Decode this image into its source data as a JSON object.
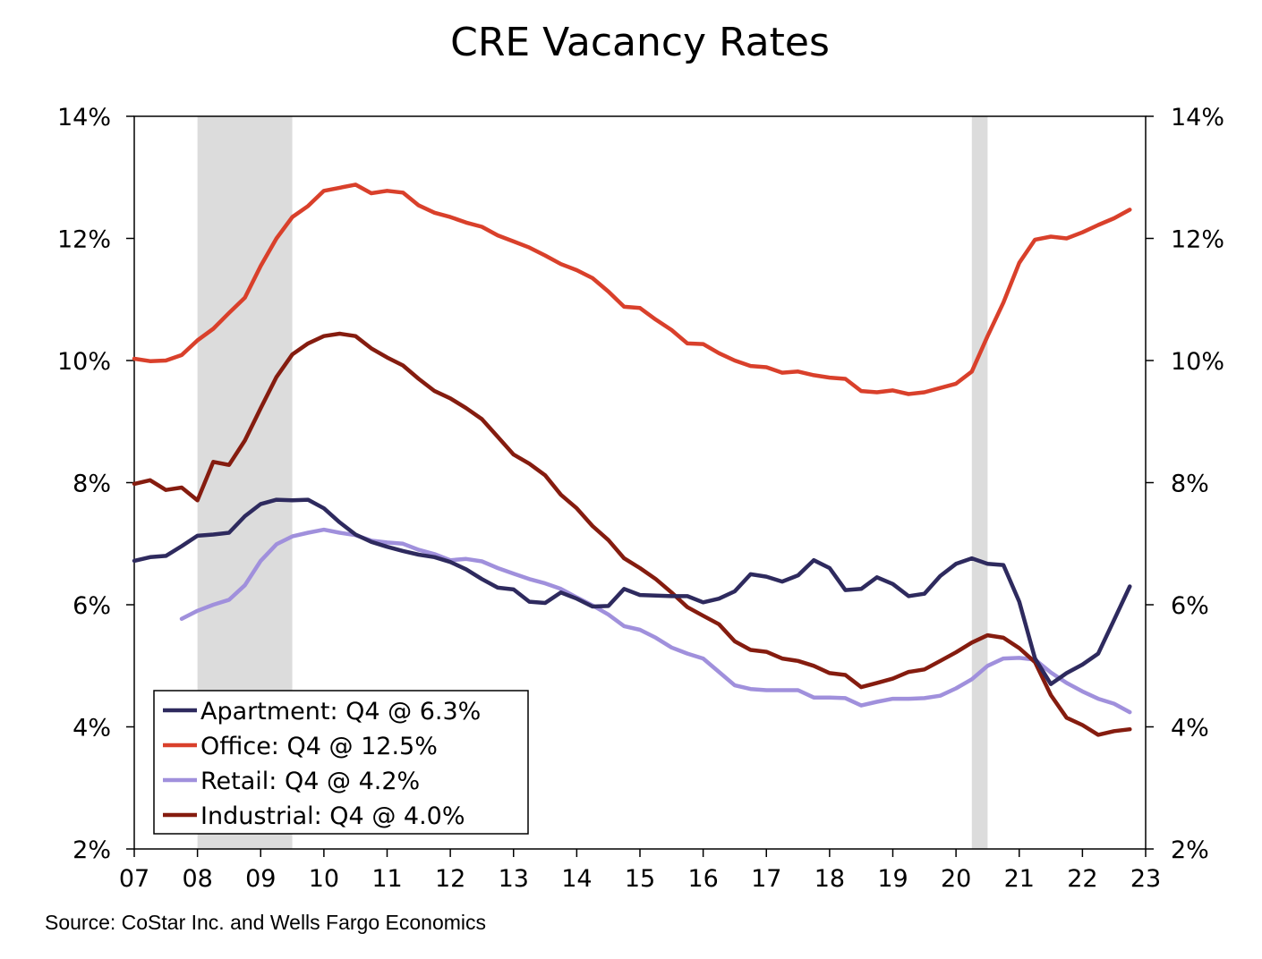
{
  "chart_data": {
    "type": "line",
    "title": "CRE Vacancy Rates",
    "source": "Source: CoStar Inc. and Wells Fargo Economics",
    "x_ticks": [
      "07",
      "08",
      "09",
      "10",
      "11",
      "12",
      "13",
      "14",
      "15",
      "16",
      "17",
      "18",
      "19",
      "20",
      "21",
      "22",
      "23"
    ],
    "y_ticks_left": [
      "2%",
      "4%",
      "6%",
      "8%",
      "10%",
      "12%",
      "14%"
    ],
    "y_ticks_right": [
      "2%",
      "4%",
      "6%",
      "8%",
      "10%",
      "12%",
      "14%"
    ],
    "xlim": [
      2007,
      2023
    ],
    "ylim": [
      2,
      14
    ],
    "grid": false,
    "legend_position": "bottom-left",
    "recessions": [
      [
        2008.0,
        2009.5
      ],
      [
        2020.25,
        2020.5
      ]
    ],
    "x": [
      2007.0,
      2007.25,
      2007.5,
      2007.75,
      2008.0,
      2008.25,
      2008.5,
      2008.75,
      2009.0,
      2009.25,
      2009.5,
      2009.75,
      2010.0,
      2010.25,
      2010.5,
      2010.75,
      2011.0,
      2011.25,
      2011.5,
      2011.75,
      2012.0,
      2012.25,
      2012.5,
      2012.75,
      2013.0,
      2013.25,
      2013.5,
      2013.75,
      2014.0,
      2014.25,
      2014.5,
      2014.75,
      2015.0,
      2015.25,
      2015.5,
      2015.75,
      2016.0,
      2016.25,
      2016.5,
      2016.75,
      2017.0,
      2017.25,
      2017.5,
      2017.75,
      2018.0,
      2018.25,
      2018.5,
      2018.75,
      2019.0,
      2019.25,
      2019.5,
      2019.75,
      2020.0,
      2020.25,
      2020.5,
      2020.75,
      2021.0,
      2021.25,
      2021.5,
      2021.75,
      2022.0,
      2022.25,
      2022.5,
      2022.75
    ],
    "series": [
      {
        "name": "Apartment",
        "legend_label": "Apartment: Q4 @ 6.3%",
        "color": "#2e2a5e",
        "values": [
          6.72,
          6.78,
          6.8,
          6.96,
          7.13,
          7.15,
          7.18,
          7.45,
          7.65,
          7.72,
          7.71,
          7.72,
          7.58,
          7.35,
          7.15,
          7.03,
          6.95,
          6.88,
          6.82,
          6.78,
          6.7,
          6.58,
          6.42,
          6.28,
          6.25,
          6.05,
          6.03,
          6.2,
          6.1,
          5.97,
          5.98,
          6.26,
          6.16,
          6.15,
          6.14,
          6.14,
          6.04,
          6.1,
          6.22,
          6.5,
          6.46,
          6.38,
          6.48,
          6.73,
          6.6,
          6.24,
          6.26,
          6.45,
          6.34,
          6.14,
          6.18,
          6.47,
          6.67,
          6.76,
          6.67,
          6.65,
          6.05,
          5.12,
          4.7,
          4.88,
          5.02,
          5.2,
          5.75,
          6.3
        ]
      },
      {
        "name": "Office",
        "legend_label": "Office: Q4 @ 12.5%",
        "color": "#d9402b",
        "values": [
          10.03,
          9.99,
          10.0,
          10.09,
          10.33,
          10.52,
          10.78,
          11.03,
          11.55,
          12.0,
          12.35,
          12.53,
          12.78,
          12.83,
          12.88,
          12.74,
          12.78,
          12.75,
          12.54,
          12.42,
          12.35,
          12.26,
          12.19,
          12.05,
          11.95,
          11.85,
          11.72,
          11.58,
          11.48,
          11.35,
          11.13,
          10.88,
          10.86,
          10.67,
          10.5,
          10.28,
          10.27,
          10.12,
          10.0,
          9.91,
          9.89,
          9.8,
          9.82,
          9.76,
          9.72,
          9.7,
          9.5,
          9.48,
          9.51,
          9.45,
          9.48,
          9.55,
          9.62,
          9.82,
          10.4,
          10.95,
          11.6,
          11.98,
          12.03,
          12.0,
          12.1,
          12.22,
          12.33,
          12.47
        ]
      },
      {
        "name": "Retail",
        "legend_label": "Retail: Q4 @ 4.2%",
        "color": "#a090dc",
        "values": [
          null,
          null,
          null,
          5.77,
          5.9,
          6.0,
          6.08,
          6.32,
          6.72,
          6.99,
          7.12,
          7.18,
          7.23,
          7.18,
          7.14,
          7.05,
          7.02,
          7.0,
          6.9,
          6.83,
          6.73,
          6.75,
          6.71,
          6.6,
          6.51,
          6.42,
          6.35,
          6.26,
          6.12,
          5.99,
          5.84,
          5.65,
          5.59,
          5.46,
          5.3,
          5.2,
          5.12,
          4.9,
          4.68,
          4.62,
          4.6,
          4.6,
          4.6,
          4.48,
          4.48,
          4.47,
          4.35,
          4.41,
          4.46,
          4.46,
          4.47,
          4.51,
          4.63,
          4.78,
          5.0,
          5.12,
          5.13,
          5.1,
          4.89,
          4.72,
          4.58,
          4.46,
          4.38,
          4.24
        ]
      },
      {
        "name": "Industrial",
        "legend_label": "Industrial: Q4 @ 4.0%",
        "color": "#851c0f",
        "values": [
          7.98,
          8.04,
          7.88,
          7.92,
          7.71,
          8.34,
          8.29,
          8.69,
          9.22,
          9.73,
          10.1,
          10.28,
          10.4,
          10.44,
          10.4,
          10.2,
          10.05,
          9.92,
          9.7,
          9.5,
          9.38,
          9.22,
          9.04,
          8.75,
          8.46,
          8.31,
          8.12,
          7.8,
          7.58,
          7.29,
          7.06,
          6.76,
          6.6,
          6.42,
          6.2,
          5.96,
          5.82,
          5.68,
          5.4,
          5.26,
          5.23,
          5.12,
          5.08,
          5.0,
          4.88,
          4.85,
          4.65,
          4.72,
          4.79,
          4.9,
          4.94,
          5.08,
          5.22,
          5.38,
          5.5,
          5.46,
          5.29,
          5.06,
          4.52,
          4.15,
          4.03,
          3.87,
          3.93,
          3.96
        ]
      }
    ]
  }
}
